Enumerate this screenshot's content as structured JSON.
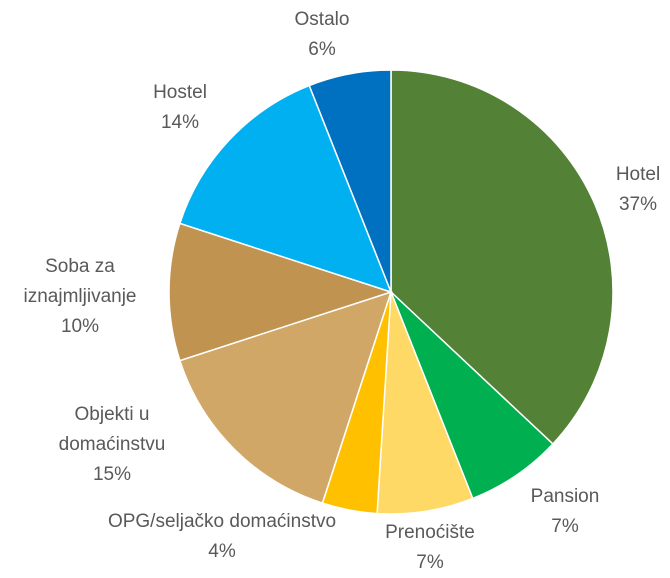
{
  "chart_data": {
    "type": "pie",
    "categories": [
      "Hotel",
      "Pansion",
      "Prenoćište",
      "OPG/seljačko domaćinstvo",
      "Objekti u domaćinstvu",
      "Soba za iznajmljivanje",
      "Hostel",
      "Ostalo"
    ],
    "values": [
      37,
      7,
      7,
      4,
      15,
      10,
      14,
      6
    ],
    "value_labels": [
      "37%",
      "7%",
      "7%",
      "4%",
      "15%",
      "10%",
      "14%",
      "6%"
    ],
    "colors": [
      "#538135",
      "#00b050",
      "#ffd966",
      "#ffc000",
      "#d1a767",
      "#c19351",
      "#00b0f0",
      "#0070c0"
    ]
  }
}
